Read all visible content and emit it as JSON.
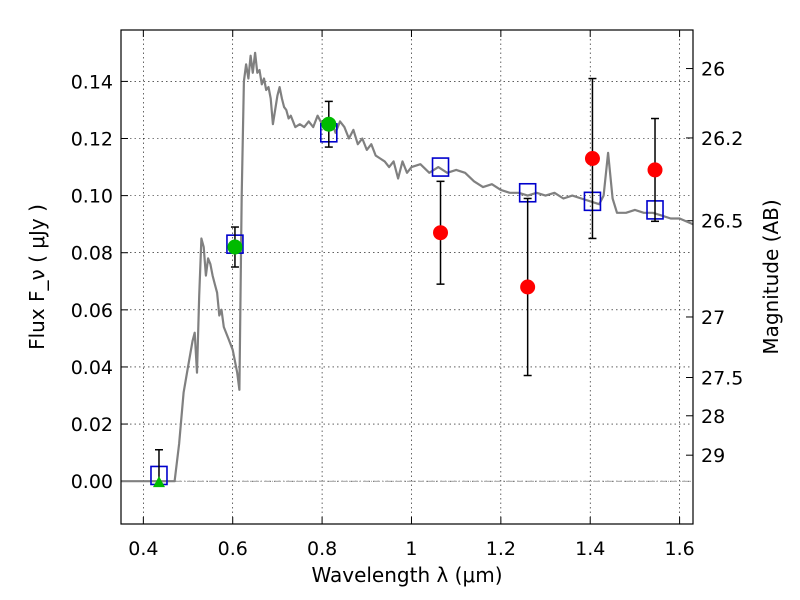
{
  "chart_data": {
    "type": "scatter",
    "xlabel": "Wavelength  λ (μm)",
    "ylabel": "Flux  F_ν  ( μJy )",
    "ylabel_right": "Magnitude (AB)",
    "xlim": [
      0.35,
      1.63
    ],
    "ylim": [
      -0.015,
      0.158
    ],
    "grid": true,
    "x_ticks": [
      0.4,
      0.6,
      0.8,
      1.0,
      1.2,
      1.4,
      1.6
    ],
    "x_tick_labels": [
      "0.4",
      "0.6",
      "0.8",
      "1",
      "1.2",
      "1.4",
      "1.6"
    ],
    "y_ticks": [
      0.0,
      0.02,
      0.04,
      0.06,
      0.08,
      0.1,
      0.12,
      0.14
    ],
    "y_tick_labels": [
      "0.00",
      "0.02",
      "0.04",
      "0.06",
      "0.08",
      "0.10",
      "0.12",
      "0.14"
    ],
    "right_ticks": [
      {
        "flux": 0.1445,
        "label": "26"
      },
      {
        "flux": 0.1202,
        "label": "26.2"
      },
      {
        "flux": 0.0912,
        "label": "26.5"
      },
      {
        "flux": 0.0575,
        "label": "27"
      },
      {
        "flux": 0.0363,
        "label": "27.5"
      },
      {
        "flux": 0.0229,
        "label": "28"
      },
      {
        "flux": 0.0091,
        "label": "29"
      }
    ],
    "series": [
      {
        "style": "line",
        "color": "#808080",
        "x": [
          0.35,
          0.47,
          0.48,
          0.49,
          0.5,
          0.51,
          0.515,
          0.52,
          0.525,
          0.53,
          0.535,
          0.54,
          0.545,
          0.55,
          0.555,
          0.56,
          0.565,
          0.57,
          0.575,
          0.58,
          0.59,
          0.6,
          0.61,
          0.615,
          0.62,
          0.625,
          0.63,
          0.635,
          0.64,
          0.645,
          0.65,
          0.655,
          0.66,
          0.665,
          0.67,
          0.675,
          0.68,
          0.685,
          0.69,
          0.7,
          0.705,
          0.71,
          0.715,
          0.72,
          0.725,
          0.73,
          0.74,
          0.75,
          0.76,
          0.77,
          0.78,
          0.79,
          0.8,
          0.81,
          0.82,
          0.83,
          0.84,
          0.85,
          0.86,
          0.87,
          0.88,
          0.89,
          0.9,
          0.91,
          0.92,
          0.93,
          0.94,
          0.95,
          0.96,
          0.97,
          0.98,
          0.99,
          1.0,
          1.02,
          1.04,
          1.06,
          1.08,
          1.1,
          1.12,
          1.14,
          1.16,
          1.18,
          1.2,
          1.22,
          1.24,
          1.26,
          1.28,
          1.3,
          1.32,
          1.34,
          1.36,
          1.38,
          1.4,
          1.42,
          1.43,
          1.44,
          1.45,
          1.46,
          1.48,
          1.5,
          1.52,
          1.54,
          1.56,
          1.58,
          1.6,
          1.63
        ],
        "y": [
          0.0,
          0.0,
          0.013,
          0.031,
          0.04,
          0.049,
          0.052,
          0.038,
          0.065,
          0.085,
          0.082,
          0.072,
          0.078,
          0.076,
          0.072,
          0.069,
          0.066,
          0.058,
          0.06,
          0.054,
          0.05,
          0.046,
          0.038,
          0.032,
          0.1,
          0.14,
          0.146,
          0.141,
          0.149,
          0.143,
          0.15,
          0.143,
          0.144,
          0.139,
          0.141,
          0.137,
          0.138,
          0.134,
          0.125,
          0.135,
          0.138,
          0.134,
          0.131,
          0.13,
          0.127,
          0.128,
          0.124,
          0.125,
          0.124,
          0.126,
          0.124,
          0.128,
          0.125,
          0.126,
          0.127,
          0.122,
          0.126,
          0.124,
          0.12,
          0.123,
          0.118,
          0.12,
          0.116,
          0.118,
          0.114,
          0.113,
          0.112,
          0.11,
          0.112,
          0.106,
          0.112,
          0.108,
          0.11,
          0.111,
          0.108,
          0.11,
          0.108,
          0.109,
          0.108,
          0.105,
          0.103,
          0.104,
          0.102,
          0.101,
          0.101,
          0.1,
          0.101,
          0.1,
          0.101,
          0.099,
          0.1,
          0.099,
          0.098,
          0.097,
          0.1,
          0.115,
          0.099,
          0.094,
          0.094,
          0.095,
          0.094,
          0.094,
          0.093,
          0.092,
          0.092,
          0.09
        ]
      },
      {
        "style": "open-square",
        "color": "#0000cc",
        "x": [
          0.435,
          0.605,
          0.815,
          1.065,
          1.26,
          1.405,
          1.545
        ],
        "y": [
          0.002,
          0.083,
          0.122,
          0.11,
          0.101,
          0.098,
          0.095
        ]
      },
      {
        "style": "filled-circle",
        "color": "#00bb00",
        "x": [
          0.605,
          0.815
        ],
        "y": [
          0.082,
          0.125
        ],
        "yerr": [
          0.007,
          0.008
        ]
      },
      {
        "style": "filled-circle",
        "color": "#ff0000",
        "x": [
          1.065,
          1.26,
          1.405,
          1.545
        ],
        "y": [
          0.087,
          0.068,
          0.113,
          0.109
        ],
        "yerr": [
          0.018,
          0.031,
          0.028,
          0.018
        ]
      },
      {
        "style": "upper-limit",
        "color": "#00bb00",
        "x": [
          0.435
        ],
        "y": [
          0.0
        ],
        "upper": [
          0.011
        ]
      }
    ]
  }
}
